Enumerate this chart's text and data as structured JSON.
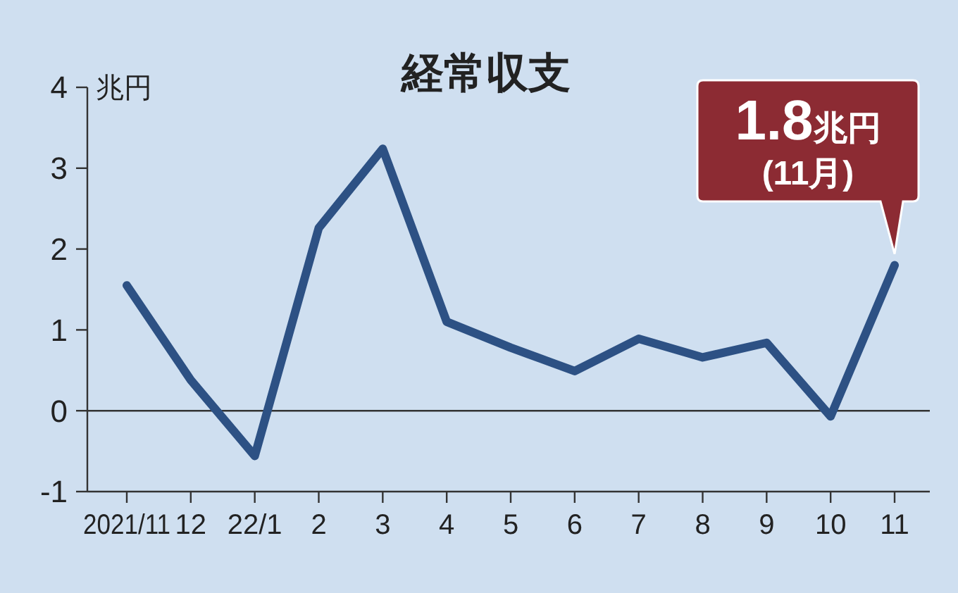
{
  "chart_data": {
    "type": "line",
    "title": "経常収支",
    "ylabel": "兆円",
    "categories": [
      "2021/11",
      "12",
      "22/1",
      "2",
      "3",
      "4",
      "5",
      "6",
      "7",
      "8",
      "9",
      "10",
      "11"
    ],
    "series": [
      {
        "color": "#2d5184",
        "values": [
          1.55,
          0.38,
          -0.56,
          2.26,
          3.24,
          1.1,
          0.78,
          0.49,
          0.89,
          0.66,
          0.84,
          -0.07,
          1.8
        ]
      }
    ],
    "ylim": [
      -1,
      4
    ],
    "yticks": [
      -1,
      0,
      1,
      2,
      3,
      4
    ],
    "ref_lines": [
      {
        "axis": "y",
        "value": 0,
        "color": "#333333"
      }
    ],
    "annotations": [
      {
        "text": "1.8兆円\n(11月)",
        "x": "11",
        "y": 1.8
      }
    ],
    "grid": false,
    "marker": "none",
    "line_style": "solid"
  }
}
